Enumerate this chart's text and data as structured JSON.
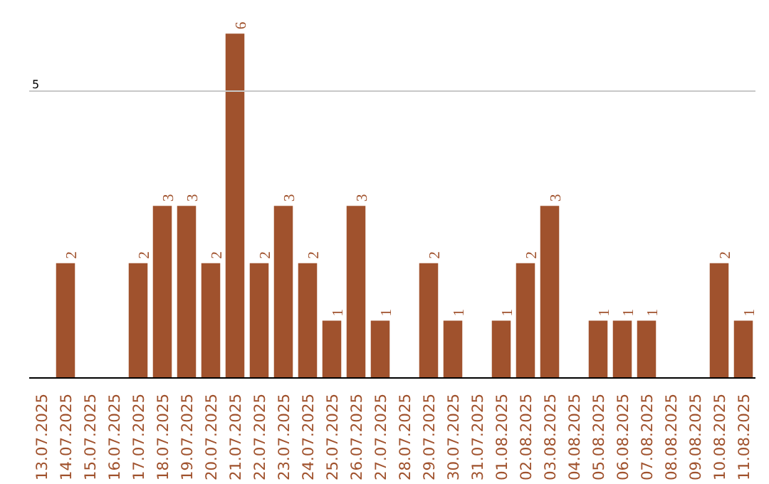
{
  "chart_data": {
    "type": "bar",
    "categories": [
      "13.07.2025",
      "14.07.2025",
      "15.07.2025",
      "16.07.2025",
      "17.07.2025",
      "18.07.2025",
      "19.07.2025",
      "20.07.2025",
      "21.07.2025",
      "22.07.2025",
      "23.07.2025",
      "24.07.2025",
      "25.07.2025",
      "26.07.2025",
      "27.07.2025",
      "28.07.2025",
      "29.07.2025",
      "30.07.2025",
      "31.07.2025",
      "01.08.2025",
      "02.08.2025",
      "03.08.2025",
      "04.08.2025",
      "05.08.2025",
      "06.08.2025",
      "07.08.2025",
      "08.08.2025",
      "09.08.2025",
      "10.08.2025",
      "11.08.2025"
    ],
    "values": [
      0,
      2,
      0,
      0,
      2,
      3,
      3,
      2,
      6,
      2,
      3,
      2,
      1,
      3,
      1,
      0,
      2,
      1,
      0,
      1,
      2,
      3,
      0,
      1,
      1,
      1,
      0,
      0,
      2,
      1
    ],
    "value_labels": [
      null,
      "2",
      null,
      null,
      "2",
      "3",
      "3",
      "2",
      "6",
      "2",
      "3",
      "2",
      "1",
      "3",
      "1",
      null,
      "2",
      "1",
      null,
      "1",
      "2",
      "3",
      null,
      "1",
      "1",
      "1",
      null,
      null,
      "2",
      "1"
    ],
    "color": "#a0522d",
    "ref_lines": [
      {
        "axis": "y",
        "value": 5,
        "label": "5",
        "color": "#c8c8c8"
      }
    ]
  }
}
